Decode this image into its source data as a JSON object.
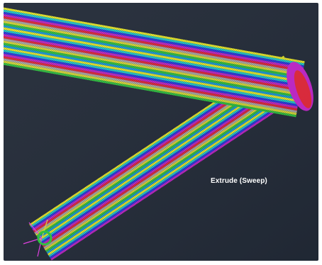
{
  "viewport": {
    "background": "#222a37",
    "annotation": "Extrude (Sweep)"
  },
  "strand_colors": [
    "#e8e82a",
    "#22c8c8",
    "#2a3ae0",
    "#c026c8",
    "#e0283a",
    "#a8a8a8",
    "#d8d838",
    "#30c040",
    "#1a9ad8"
  ]
}
